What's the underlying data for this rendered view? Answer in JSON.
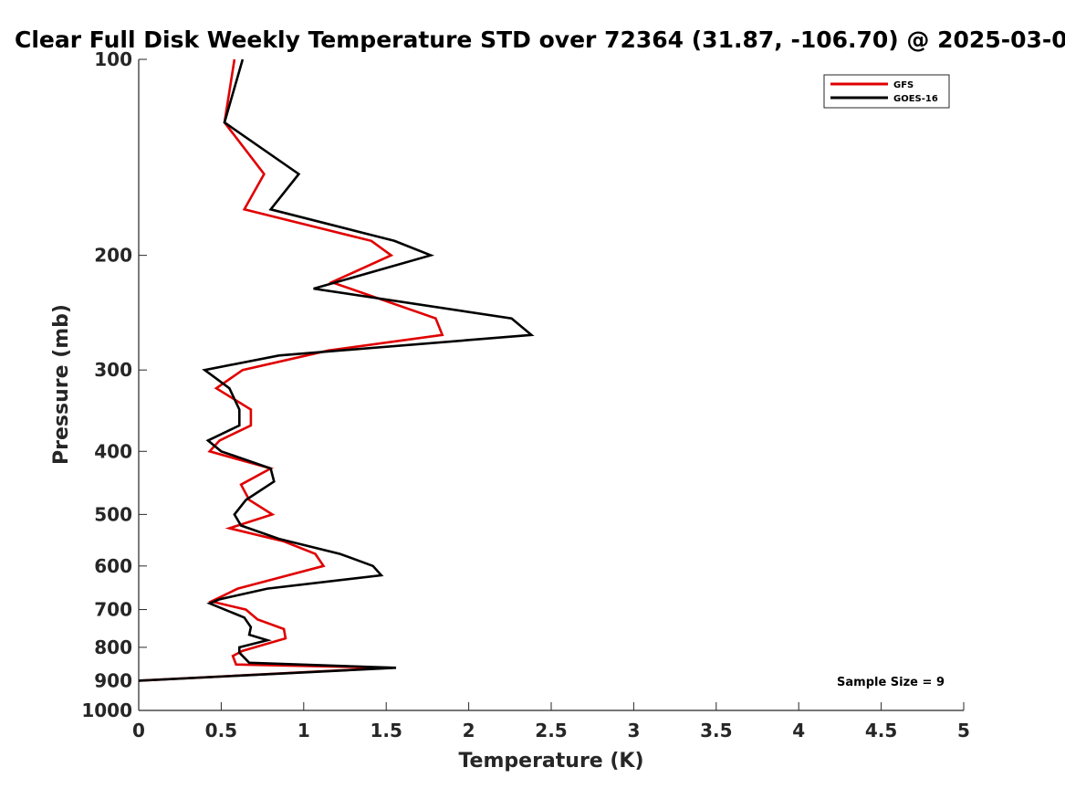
{
  "chart_data": {
    "type": "line",
    "title": "Clear Full Disk Weekly Temperature STD over 72364 (31.87, -106.70) @ 2025-03-0",
    "xlabel": "Temperature (K)",
    "ylabel": "Pressure (mb)",
    "xlim": [
      0,
      5
    ],
    "ylim": [
      100,
      1000
    ],
    "y_scale": "log",
    "y_reversed": true,
    "x_ticks": [
      "0",
      "0.5",
      "1",
      "1.5",
      "2",
      "2.5",
      "3",
      "3.5",
      "4",
      "4.5",
      "5"
    ],
    "y_ticks": [
      "100",
      "200",
      "300",
      "400",
      "500",
      "600",
      "700",
      "800",
      "900",
      "1000"
    ],
    "grid": false,
    "legend_position": "top-right",
    "annotation": "Sample Size = 9",
    "series": [
      {
        "name": "GFS",
        "color": "#e00000",
        "points": [
          [
            0.58,
            100
          ],
          [
            0.52,
            125
          ],
          [
            0.76,
            150
          ],
          [
            0.64,
            170
          ],
          [
            1.41,
            190
          ],
          [
            1.53,
            200
          ],
          [
            1.17,
            220
          ],
          [
            1.8,
            250
          ],
          [
            1.84,
            265
          ],
          [
            1.15,
            280
          ],
          [
            0.63,
            300
          ],
          [
            0.47,
            320
          ],
          [
            0.68,
            345
          ],
          [
            0.68,
            365
          ],
          [
            0.49,
            385
          ],
          [
            0.43,
            400
          ],
          [
            0.8,
            425
          ],
          [
            0.62,
            450
          ],
          [
            0.67,
            475
          ],
          [
            0.81,
            500
          ],
          [
            0.55,
            525
          ],
          [
            0.88,
            550
          ],
          [
            1.07,
            575
          ],
          [
            1.12,
            600
          ],
          [
            0.6,
            650
          ],
          [
            0.44,
            680
          ],
          [
            0.65,
            700
          ],
          [
            0.72,
            725
          ],
          [
            0.88,
            750
          ],
          [
            0.89,
            775
          ],
          [
            0.63,
            810
          ],
          [
            0.57,
            825
          ],
          [
            0.59,
            850
          ],
          [
            1.53,
            860
          ],
          [
            0.0,
            900
          ]
        ]
      },
      {
        "name": "GOES-16",
        "color": "#000000",
        "points": [
          [
            0.63,
            100
          ],
          [
            0.52,
            125
          ],
          [
            0.97,
            150
          ],
          [
            0.8,
            170
          ],
          [
            1.55,
            190
          ],
          [
            1.77,
            200
          ],
          [
            1.06,
            225
          ],
          [
            2.26,
            250
          ],
          [
            2.38,
            265
          ],
          [
            0.85,
            285
          ],
          [
            0.4,
            300
          ],
          [
            0.55,
            320
          ],
          [
            0.61,
            345
          ],
          [
            0.61,
            365
          ],
          [
            0.42,
            385
          ],
          [
            0.5,
            400
          ],
          [
            0.8,
            425
          ],
          [
            0.82,
            445
          ],
          [
            0.65,
            475
          ],
          [
            0.58,
            500
          ],
          [
            0.62,
            520
          ],
          [
            0.85,
            545
          ],
          [
            1.22,
            575
          ],
          [
            1.42,
            600
          ],
          [
            1.47,
            620
          ],
          [
            0.78,
            650
          ],
          [
            0.49,
            675
          ],
          [
            0.43,
            685
          ],
          [
            0.64,
            720
          ],
          [
            0.68,
            745
          ],
          [
            0.67,
            765
          ],
          [
            0.78,
            780
          ],
          [
            0.61,
            800
          ],
          [
            0.61,
            815
          ],
          [
            0.67,
            845
          ],
          [
            1.56,
            860
          ],
          [
            0.0,
            900
          ]
        ]
      }
    ]
  }
}
